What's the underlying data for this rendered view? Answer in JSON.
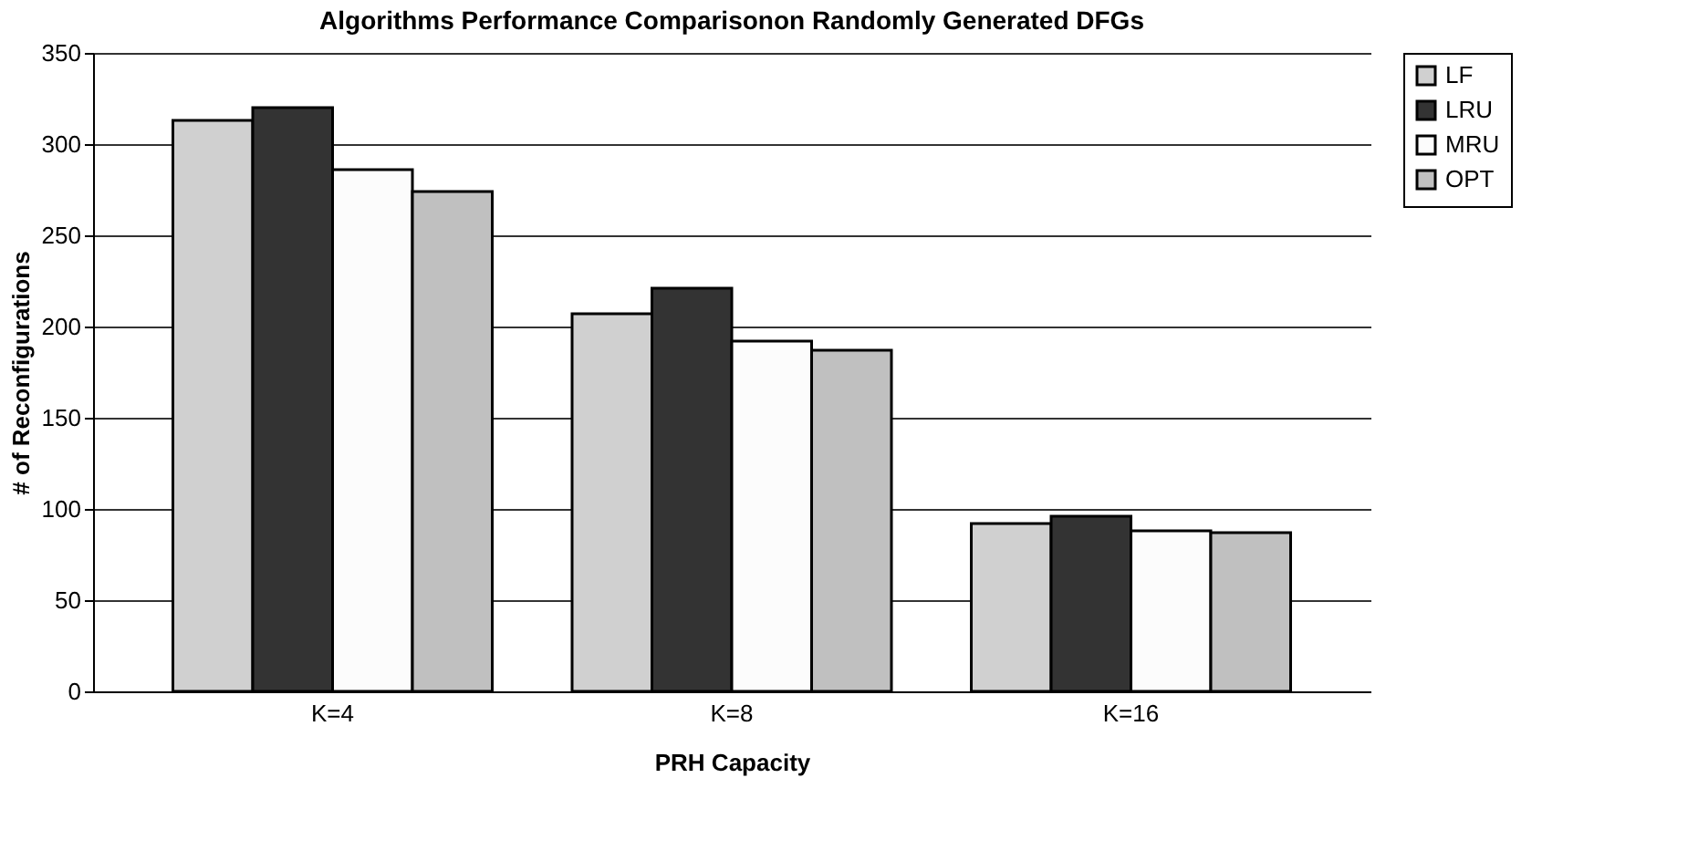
{
  "chart_data": {
    "type": "bar",
    "title": "Algorithms Performance Comparisonon Randomly Generated DFGs",
    "xlabel": "PRH Capacity",
    "ylabel": "# of Reconfigurations",
    "categories": [
      "K=4",
      "K=8",
      "K=16"
    ],
    "series": [
      {
        "name": "LF",
        "color": "#d0d0d0",
        "values": [
          313,
          207,
          92
        ]
      },
      {
        "name": "LRU",
        "color": "#333333",
        "values": [
          320,
          221,
          96
        ]
      },
      {
        "name": "MRU",
        "color": "#fcfcfc",
        "values": [
          286,
          192,
          88
        ]
      },
      {
        "name": "OPT",
        "color": "#c0c0c0",
        "values": [
          274,
          187,
          87
        ]
      }
    ],
    "ylim": [
      0,
      350
    ],
    "yticks": [
      0,
      50,
      100,
      150,
      200,
      250,
      300,
      350
    ],
    "grid": "y",
    "legend": "right"
  }
}
